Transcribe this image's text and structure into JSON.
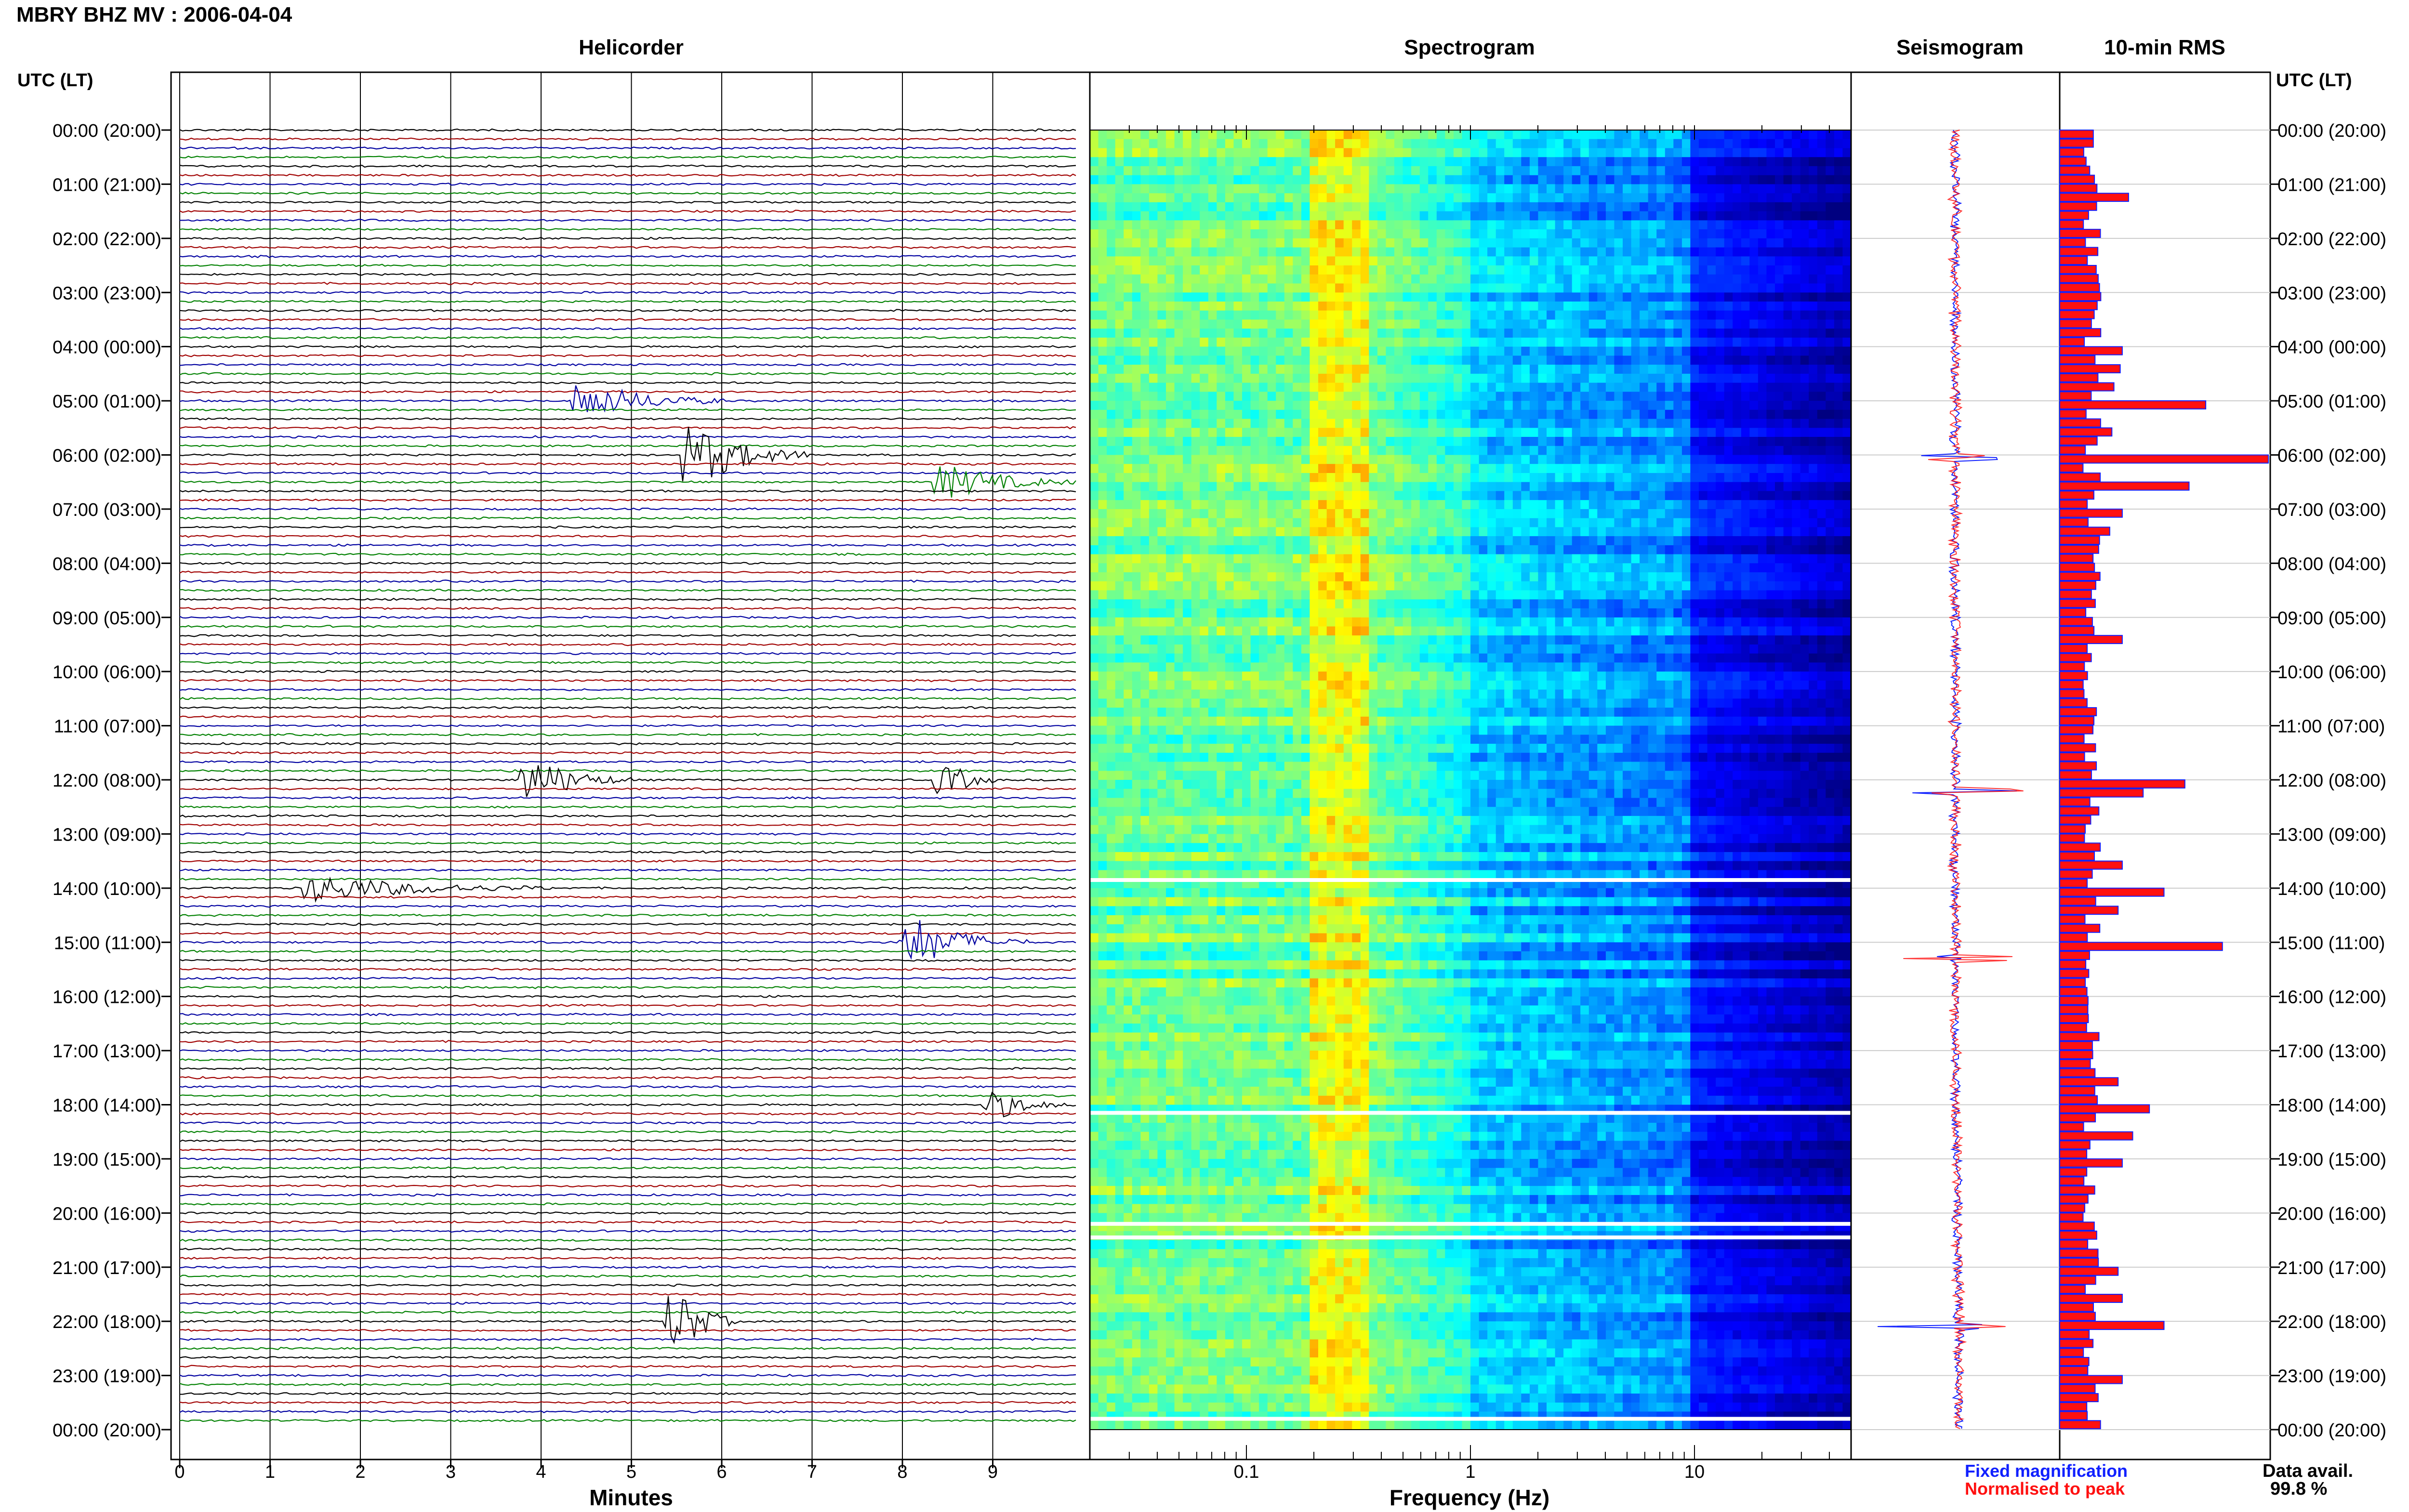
{
  "header": {
    "title": "MBRY BHZ MV : 2006-04-04",
    "panels": [
      "Helicorder",
      "Spectrogram",
      "Seismogram",
      "10-min RMS"
    ],
    "left_axis_title": "UTC (LT)",
    "right_axis_title": "UTC (LT)"
  },
  "time_labels": [
    "00:00 (20:00)",
    "01:00 (21:00)",
    "02:00 (22:00)",
    "03:00 (23:00)",
    "04:00 (00:00)",
    "05:00 (01:00)",
    "06:00 (02:00)",
    "07:00 (03:00)",
    "08:00 (04:00)",
    "09:00 (05:00)",
    "10:00 (06:00)",
    "11:00 (07:00)",
    "12:00 (08:00)",
    "13:00 (09:00)",
    "14:00 (10:00)",
    "15:00 (11:00)",
    "16:00 (12:00)",
    "17:00 (13:00)",
    "18:00 (14:00)",
    "19:00 (15:00)",
    "20:00 (16:00)",
    "21:00 (17:00)",
    "22:00 (18:00)",
    "23:00 (19:00)",
    "00:00 (20:00)"
  ],
  "helicorder": {
    "xlabel": "Minutes",
    "x_ticks": [
      "0",
      "1",
      "2",
      "3",
      "4",
      "5",
      "6",
      "7",
      "8",
      "9"
    ],
    "trace_colors": [
      "#000000",
      "#a00000",
      "#0000a0",
      "#008000"
    ],
    "events": [
      {
        "hour": 5.0,
        "minute": 4.6,
        "amp": 3.2,
        "dur": 1.5
      },
      {
        "hour": 6.0,
        "minute": 5.8,
        "amp": 5.5,
        "dur": 1.2
      },
      {
        "hour": 6.5,
        "minute": 8.6,
        "amp": 3.0,
        "dur": 1.4
      },
      {
        "hour": 12.0,
        "minute": 4.0,
        "amp": 4.0,
        "dur": 1.0
      },
      {
        "hour": 12.0,
        "minute": 8.6,
        "amp": 2.5,
        "dur": 0.5
      },
      {
        "hour": 14.0,
        "minute": 1.6,
        "amp": 2.5,
        "dur": 2.5
      },
      {
        "hour": 15.0,
        "minute": 8.2,
        "amp": 4.5,
        "dur": 1.2
      },
      {
        "hour": 18.0,
        "minute": 9.1,
        "amp": 2.5,
        "dur": 0.8
      },
      {
        "hour": 22.0,
        "minute": 5.6,
        "amp": 5.5,
        "dur": 0.6
      }
    ]
  },
  "spectrogram": {
    "xlabel": "Frequency (Hz)",
    "x_ticks": [
      "0.1",
      "1",
      "10"
    ],
    "x_scale": "log",
    "xlim_hz": [
      0.02,
      50
    ],
    "gap_hours": [
      13.85,
      18.15,
      20.2,
      20.45,
      23.8
    ]
  },
  "seismogram": {
    "spike_hours": [
      6.05,
      12.2,
      15.3,
      22.1
    ]
  },
  "rms": {
    "title": "10-min RMS",
    "interval_min": 10,
    "units": "relative",
    "note": "144 ten-minute bars; values estimated relative to the 06:00 maximum"
  },
  "legend": {
    "fixed": "Fixed magnification",
    "normalised": "Normalised to peak",
    "fixed_color": "#1020ff",
    "normalised_color": "#ff1010"
  },
  "data_availability": {
    "label": "Data avail.",
    "value": "99.8 %"
  },
  "chart_data": {
    "type": "line",
    "title": "MBRY BHZ MV : 2006-04-04",
    "panels": [
      {
        "name": "Helicorder",
        "type": "line",
        "xlabel": "Minutes",
        "xlim": [
          0,
          10
        ],
        "ylabel": "UTC (LT)",
        "rows": 144
      },
      {
        "name": "Spectrogram",
        "type": "heatmap",
        "xlabel": "Frequency (Hz)",
        "xscale": "log",
        "xlim": [
          0.02,
          50
        ],
        "colormap": "jet",
        "energy_peak_hz": 0.25
      },
      {
        "name": "Seismogram",
        "type": "line"
      },
      {
        "name": "10-min RMS",
        "type": "bar",
        "orientation": "horizontal",
        "series": [
          {
            "name": "Fixed magnification",
            "color": "#1020ff"
          },
          {
            "name": "Normalised to peak",
            "color": "#ff1010"
          }
        ]
      }
    ],
    "rms_hourly_peaks": [
      {
        "hour": "01:00",
        "value": 0.33
      },
      {
        "hour": "04:00",
        "value": 0.3
      },
      {
        "hour": "04:20",
        "value": 0.29
      },
      {
        "hour": "05:00",
        "value": 0.7
      },
      {
        "hour": "06:00",
        "value": 1.0
      },
      {
        "hour": "06:30",
        "value": 0.62
      },
      {
        "hour": "12:00",
        "value": 0.6
      },
      {
        "hour": "14:00",
        "value": 0.5
      },
      {
        "hour": "15:00",
        "value": 0.78
      },
      {
        "hour": "18:00",
        "value": 0.43
      },
      {
        "hour": "22:00",
        "value": 0.5
      }
    ]
  }
}
